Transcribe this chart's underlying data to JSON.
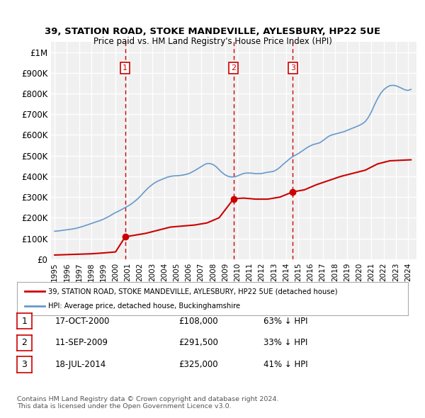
{
  "title_line1": "39, STATION ROAD, STOKE MANDEVILLE, AYLESBURY, HP22 5UE",
  "title_line2": "Price paid vs. HM Land Registry's House Price Index (HPI)",
  "background_color": "#ffffff",
  "plot_bg_color": "#f0f0f0",
  "grid_color": "#ffffff",
  "hpi_color": "#6699cc",
  "price_color": "#cc0000",
  "vline_color": "#cc0000",
  "ylim": [
    0,
    1050000
  ],
  "yticks": [
    0,
    100000,
    200000,
    300000,
    400000,
    500000,
    600000,
    700000,
    800000,
    900000,
    1000000
  ],
  "ytick_labels": [
    "£0",
    "£100K",
    "£200K",
    "£300K",
    "£400K",
    "£500K",
    "£600K",
    "£700K",
    "£800K",
    "£900K",
    "£1M"
  ],
  "sale_dates": [
    2000.79,
    2009.69,
    2014.54
  ],
  "sale_prices": [
    108000,
    291500,
    325000
  ],
  "sale_labels": [
    "1",
    "2",
    "3"
  ],
  "legend_property": "39, STATION ROAD, STOKE MANDEVILLE, AYLESBURY, HP22 5UE (detached house)",
  "legend_hpi": "HPI: Average price, detached house, Buckinghamshire",
  "table_rows": [
    [
      "1",
      "17-OCT-2000",
      "£108,000",
      "63% ↓ HPI"
    ],
    [
      "2",
      "11-SEP-2009",
      "£291,500",
      "33% ↓ HPI"
    ],
    [
      "3",
      "18-JUL-2014",
      "£325,000",
      "41% ↓ HPI"
    ]
  ],
  "footer": "Contains HM Land Registry data © Crown copyright and database right 2024.\nThis data is licensed under the Open Government Licence v3.0.",
  "hpi_x": [
    1995.0,
    1995.25,
    1995.5,
    1995.75,
    1996.0,
    1996.25,
    1996.5,
    1996.75,
    1997.0,
    1997.25,
    1997.5,
    1997.75,
    1998.0,
    1998.25,
    1998.5,
    1998.75,
    1999.0,
    1999.25,
    1999.5,
    1999.75,
    2000.0,
    2000.25,
    2000.5,
    2000.75,
    2001.0,
    2001.25,
    2001.5,
    2001.75,
    2002.0,
    2002.25,
    2002.5,
    2002.75,
    2003.0,
    2003.25,
    2003.5,
    2003.75,
    2004.0,
    2004.25,
    2004.5,
    2004.75,
    2005.0,
    2005.25,
    2005.5,
    2005.75,
    2006.0,
    2006.25,
    2006.5,
    2006.75,
    2007.0,
    2007.25,
    2007.5,
    2007.75,
    2008.0,
    2008.25,
    2008.5,
    2008.75,
    2009.0,
    2009.25,
    2009.5,
    2009.75,
    2010.0,
    2010.25,
    2010.5,
    2010.75,
    2011.0,
    2011.25,
    2011.5,
    2011.75,
    2012.0,
    2012.25,
    2012.5,
    2012.75,
    2013.0,
    2013.25,
    2013.5,
    2013.75,
    2014.0,
    2014.25,
    2014.5,
    2014.75,
    2015.0,
    2015.25,
    2015.5,
    2015.75,
    2016.0,
    2016.25,
    2016.5,
    2016.75,
    2017.0,
    2017.25,
    2017.5,
    2017.75,
    2018.0,
    2018.25,
    2018.5,
    2018.75,
    2019.0,
    2019.25,
    2019.5,
    2019.75,
    2020.0,
    2020.25,
    2020.5,
    2020.75,
    2021.0,
    2021.25,
    2021.5,
    2021.75,
    2022.0,
    2022.25,
    2022.5,
    2022.75,
    2023.0,
    2023.25,
    2023.5,
    2023.75,
    2024.0,
    2024.25
  ],
  "hpi_y": [
    135000,
    136000,
    138000,
    140000,
    142000,
    144000,
    146000,
    149000,
    153000,
    157000,
    162000,
    167000,
    172000,
    177000,
    182000,
    187000,
    193000,
    200000,
    208000,
    217000,
    225000,
    232000,
    240000,
    248000,
    256000,
    265000,
    276000,
    288000,
    302000,
    318000,
    334000,
    348000,
    360000,
    370000,
    378000,
    384000,
    390000,
    396000,
    400000,
    402000,
    403000,
    404000,
    406000,
    409000,
    413000,
    420000,
    428000,
    437000,
    446000,
    455000,
    462000,
    462000,
    457000,
    447000,
    432000,
    418000,
    407000,
    400000,
    397000,
    398000,
    402000,
    408000,
    414000,
    416000,
    416000,
    415000,
    413000,
    413000,
    414000,
    417000,
    420000,
    422000,
    425000,
    433000,
    444000,
    458000,
    470000,
    483000,
    494000,
    502000,
    510000,
    520000,
    530000,
    540000,
    548000,
    554000,
    558000,
    562000,
    572000,
    583000,
    594000,
    600000,
    604000,
    608000,
    612000,
    616000,
    622000,
    628000,
    634000,
    640000,
    646000,
    654000,
    665000,
    685000,
    712000,
    745000,
    775000,
    800000,
    818000,
    830000,
    838000,
    840000,
    838000,
    832000,
    825000,
    818000,
    815000,
    820000
  ],
  "price_line_x": [
    1995.0,
    1996.0,
    1997.0,
    1998.0,
    1999.0,
    2000.0,
    2000.79,
    2001.5,
    2002.5,
    2003.5,
    2004.5,
    2005.5,
    2006.5,
    2007.5,
    2008.5,
    2009.69,
    2010.5,
    2011.5,
    2012.5,
    2013.5,
    2014.54,
    2015.5,
    2016.5,
    2017.5,
    2018.5,
    2019.5,
    2020.5,
    2021.5,
    2022.5,
    2023.5,
    2024.25
  ],
  "price_line_y": [
    20000,
    22000,
    24000,
    26000,
    30000,
    35000,
    108000,
    115000,
    125000,
    140000,
    155000,
    160000,
    165000,
    175000,
    200000,
    291500,
    295000,
    290000,
    290000,
    300000,
    325000,
    335000,
    360000,
    380000,
    400000,
    415000,
    430000,
    460000,
    475000,
    478000,
    480000
  ]
}
